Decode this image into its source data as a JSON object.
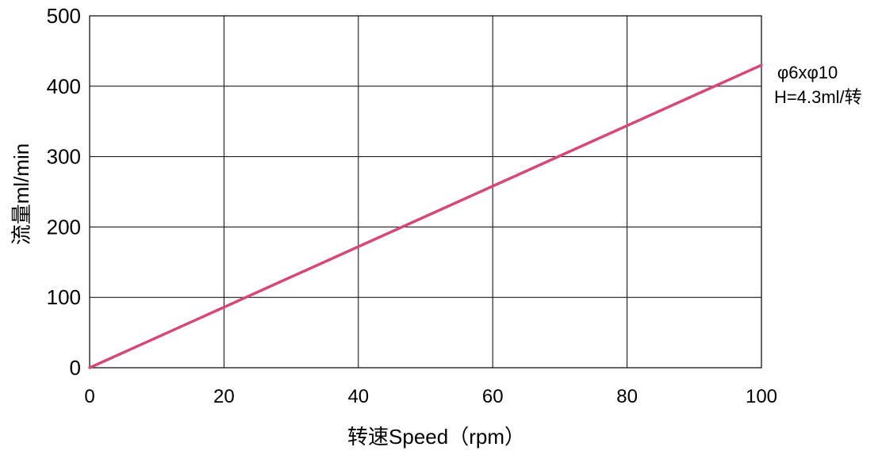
{
  "chart_data": {
    "type": "line",
    "title": "",
    "xlabel": "转速Speed（rpm）",
    "ylabel": "流量ml/min",
    "xlim": [
      0,
      100
    ],
    "ylim": [
      0,
      500
    ],
    "x_ticks": [
      "0",
      "20",
      "40",
      "60",
      "80",
      "100"
    ],
    "y_ticks": [
      "0",
      "100",
      "200",
      "300",
      "400",
      "500"
    ],
    "grid": true,
    "series": [
      {
        "name": "",
        "color": "#d4487a",
        "x": [
          0,
          100
        ],
        "y": [
          0,
          430
        ]
      }
    ],
    "annotations": [
      "φ6xφ10",
      "H=4.3ml/转"
    ]
  }
}
